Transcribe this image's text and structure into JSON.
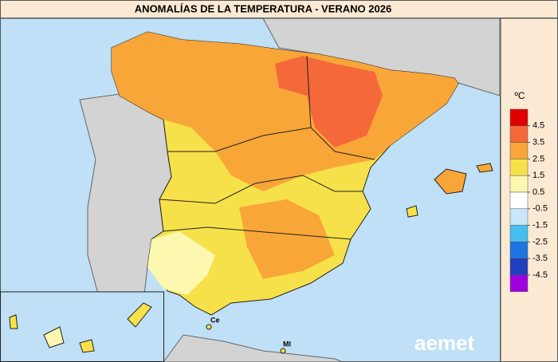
{
  "title": "ANOMALÍAS DE LA TEMPERATURA - VERANO 2026",
  "legend": {
    "unit": "ºC",
    "colors": [
      "#e00000",
      "#f4683a",
      "#f9a638",
      "#f7e14a",
      "#fdf8b0",
      "#ffffff",
      "#c6e8fa",
      "#45bff0",
      "#1e74e0",
      "#1f3fc0",
      "#a000e0"
    ],
    "ticks": [
      4.5,
      3.5,
      2.5,
      1.5,
      0.5,
      -0.5,
      -1.5,
      -2.5,
      -3.5,
      -4.5
    ]
  },
  "places": [
    {
      "label": "Ce"
    },
    {
      "label": "Ml"
    }
  ],
  "logo": "aemet"
}
